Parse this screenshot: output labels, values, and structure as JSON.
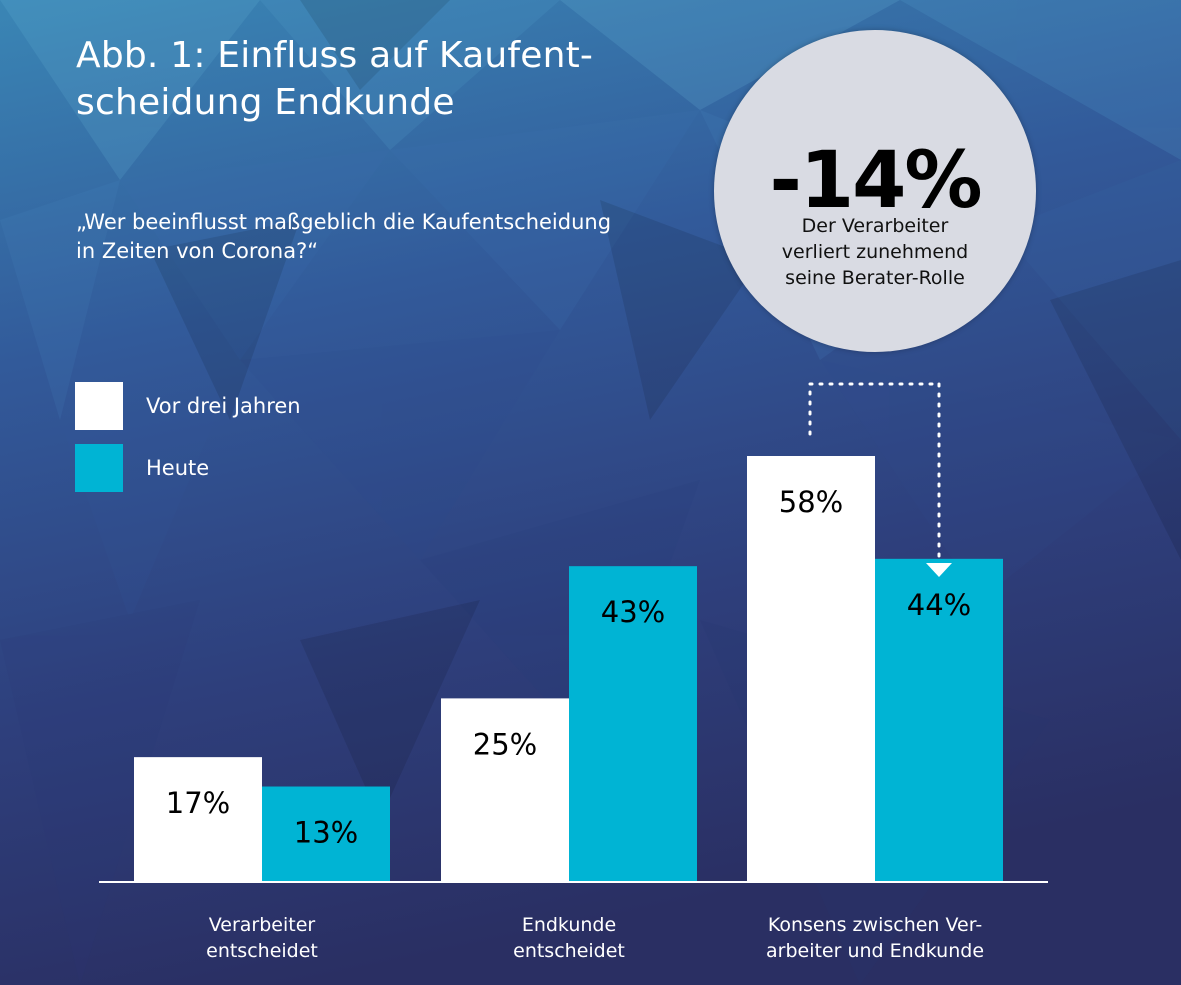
{
  "title": "Abb. 1: Einfluss auf Kaufent-\nscheidung Endkunde",
  "question": "„Wer beeinflusst maßgeblich die Kaufentscheidung\nin Zeiten von Corona?“",
  "callout": {
    "value": "-14%",
    "caption": "Der Verarbeiter\nverliert zunehmend\nseine Berater-Rolle"
  },
  "colors": {
    "series_previous": "#ffffff",
    "series_today": "#00b4d4",
    "value_on_white": "#000000",
    "value_on_cyan": "#000000"
  },
  "legend": [
    {
      "label": "Vor drei Jahren",
      "color": "#ffffff"
    },
    {
      "label": "Heute",
      "color": "#00b4d4"
    }
  ],
  "chart_data": {
    "type": "bar",
    "categories": [
      "Verarbeiter\nentscheidet",
      "Endkunde\nentscheidet",
      "Konsens zwischen Ver-\narbeiter und Endkunde"
    ],
    "series": [
      {
        "name": "Vor drei Jahren",
        "values": [
          17,
          25,
          58
        ],
        "labels": [
          "17%",
          "25%",
          "58%"
        ]
      },
      {
        "name": "Heute",
        "values": [
          13,
          43,
          44
        ],
        "labels": [
          "13%",
          "43%",
          "44%"
        ]
      }
    ],
    "ylim": [
      0,
      58
    ],
    "grid": false,
    "legend_position": "top-left",
    "annotation": "-14%"
  }
}
